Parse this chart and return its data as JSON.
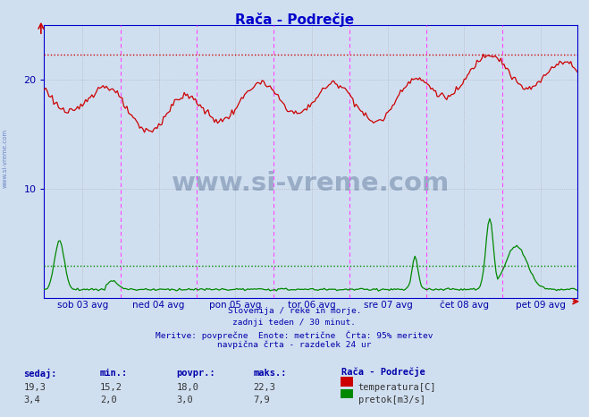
{
  "title": "Rača - Podrečje",
  "title_color": "#0000cc",
  "bg_color": "#d0dff0",
  "plot_bg_color": "#d0dff0",
  "x_labels": [
    "sob 03 avg",
    "ned 04 avg",
    "pon 05 avg",
    "tor 06 avg",
    "sre 07 avg",
    "čet 08 avg",
    "pet 09 avg"
  ],
  "n_points": 336,
  "ylim": [
    0,
    25
  ],
  "ytick_positions": [
    10,
    20
  ],
  "ytick_labels": [
    "10",
    "20"
  ],
  "temp_color": "#cc0000",
  "flow_color": "#008800",
  "temp_max_line": 22.3,
  "flow_avg_line": 3.0,
  "grid_color": "#aaaaaa",
  "vline_color": "#ff44ff",
  "footer_lines": [
    "Slovenija / reke in morje.",
    "zadnji teden / 30 minut.",
    "Meritve: povprečne  Enote: metrične  Črta: 95% meritev",
    "navpična črta - razdelek 24 ur"
  ],
  "legend_title": "Rača - Podrečje",
  "stat_headers": [
    "sedaj:",
    "min.:",
    "povpr.:",
    "maks.:"
  ],
  "temp_stats": [
    "19,3",
    "15,2",
    "18,0",
    "22,3"
  ],
  "flow_stats": [
    "3,4",
    "2,0",
    "3,0",
    "7,9"
  ],
  "temp_label": "temperatura[C]",
  "flow_label": "pretok[m3/s]",
  "text_color": "#0000aa",
  "watermark": "www.si-vreme.com",
  "axis_color": "#0000cc"
}
